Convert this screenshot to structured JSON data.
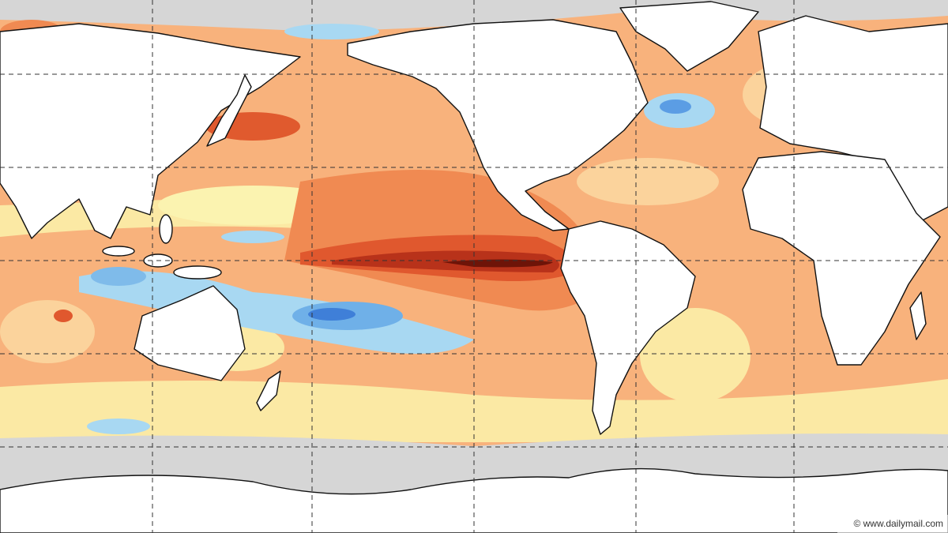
{
  "watermark": "© www.dailymail.com"
}
